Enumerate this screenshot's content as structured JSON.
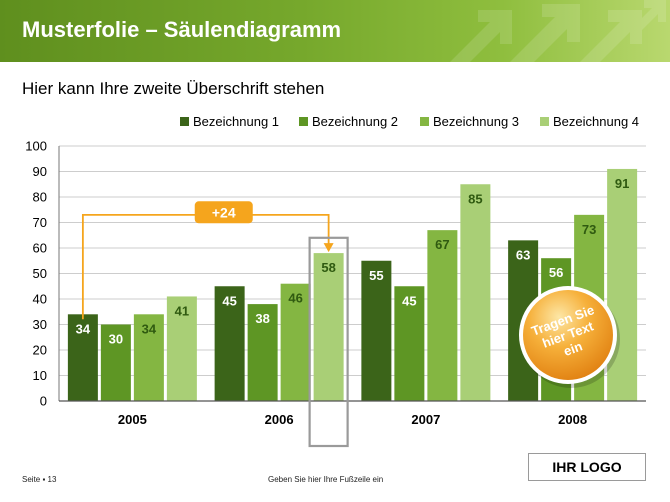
{
  "slide": {
    "title": "Musterfolie – Säulendiagramm",
    "subtitle": "Hier kann Ihre zweite Überschrift stehen"
  },
  "chart_data": {
    "type": "bar",
    "title": "",
    "xlabel": "",
    "ylabel": "",
    "ylim": [
      0,
      100
    ],
    "yticks": [
      0,
      10,
      20,
      30,
      40,
      50,
      60,
      70,
      80,
      90,
      100
    ],
    "grid": true,
    "legend_position": "top-right",
    "categories": [
      "2005",
      "2006",
      "2007",
      "2008"
    ],
    "series": [
      {
        "name": "Bezeichnung 1",
        "color": "#3b6419",
        "values": [
          34,
          45,
          55,
          63
        ]
      },
      {
        "name": "Bezeichnung 2",
        "color": "#5e9624",
        "values": [
          30,
          38,
          45,
          56
        ]
      },
      {
        "name": "Bezeichnung 3",
        "color": "#84b642",
        "values": [
          34,
          46,
          67,
          73
        ]
      },
      {
        "name": "Bezeichnung 4",
        "color": "#a9cf76",
        "values": [
          41,
          58,
          85,
          91
        ]
      }
    ],
    "annotations": {
      "difference": {
        "label": "+24",
        "color": "#f5a51d"
      },
      "highlight": {
        "category": "2006",
        "series": "Bezeichnung 4"
      }
    }
  },
  "badge": {
    "text": "Tragen Sie hier Text ein",
    "color": "#f0a020"
  },
  "footer": {
    "page": "Seite ▪ 13",
    "text": "Geben Sie hier Ihre Fußzeile ein",
    "logo": "IHR LOGO"
  }
}
